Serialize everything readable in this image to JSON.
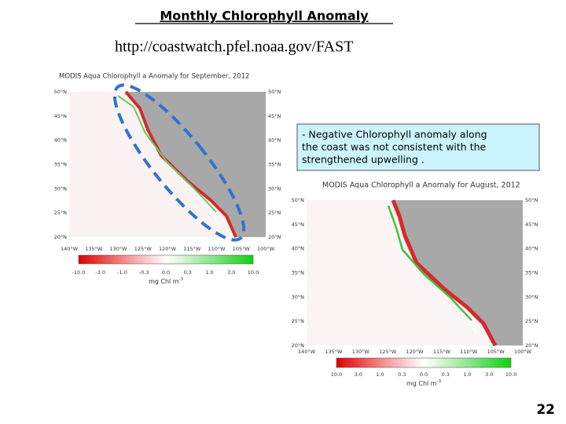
{
  "title": "Monthly Chlorophyll Anomaly",
  "url": "http://coastwatch.pfel.noaa.gov/FAST",
  "note": {
    "lines": [
      "- Negative Chlorophyll anomaly along",
      "the coast was not consistent with the",
      "strengthened upwelling ."
    ]
  },
  "page_number": "22",
  "maps": [
    {
      "title": "MODIS Aqua Chlorophyll a Anomaly for September, 2012",
      "lat_labels": [
        "50°N",
        "45°N",
        "40°N",
        "35°N",
        "30°N",
        "25°N",
        "20°N"
      ],
      "lon_labels": [
        "140°W",
        "135°W",
        "130°W",
        "125°W",
        "120°W",
        "115°W",
        "110°W",
        "105°W",
        "100°W"
      ],
      "colorbar_labels": [
        "-10.0",
        "-3.0",
        "-1.0",
        "-0.3",
        "0.0",
        "0.3",
        "1.0",
        "3.0",
        "10.0"
      ],
      "units": "mg Chl m",
      "units_power": "-3"
    },
    {
      "title": "MODIS Aqua Chlorophyll a Anomaly for August, 2012",
      "lat_labels": [
        "50°N",
        "45°N",
        "40°N",
        "35°N",
        "30°N",
        "25°N",
        "20°N"
      ],
      "lon_labels": [
        "140°W",
        "135°W",
        "130°W",
        "125°W",
        "120°W",
        "115°W",
        "110°W",
        "105°W",
        "100°W"
      ],
      "colorbar_labels": [
        "10.0",
        "3.0",
        "1.0",
        "0.3",
        "0.0",
        "0.3",
        "1.0",
        "3.0",
        "10.0"
      ],
      "units": "mg Chl m",
      "units_power": "-3"
    }
  ]
}
